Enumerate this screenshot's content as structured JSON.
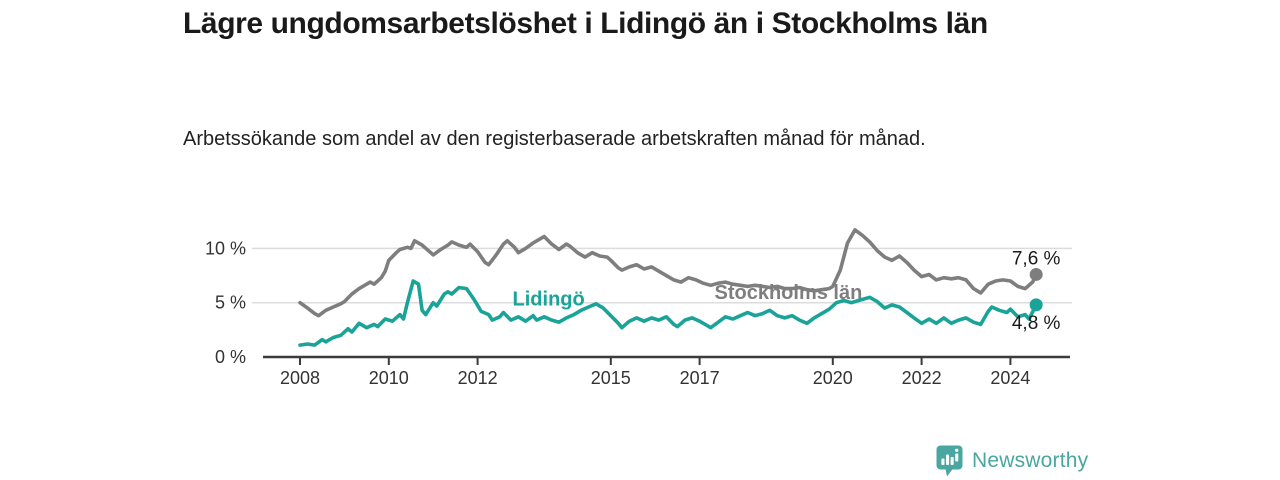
{
  "page": {
    "title": "Lägre ungdomsarbetslöshet i Lidingö än i Stockholms län",
    "subtitle": "Arbetssökande som andel av den registerbaserade arbetskraften månad för månad."
  },
  "branding": {
    "logo_text": "Newsworthy",
    "logo_icon": "bar-chart-speech-bubble-icon",
    "brand_color": "#4aa6a0"
  },
  "chart_data": {
    "type": "line",
    "title": "Lägre ungdomsarbetslöshet i Lidingö än i Stockholms län",
    "subtitle": "Arbetssökande som andel av den registerbaserade arbetskraften månad för månad.",
    "unit": "%",
    "x_axis": {
      "ticks": [
        2008,
        2010,
        2012,
        2015,
        2017,
        2020,
        2022,
        2024
      ],
      "range": [
        2007.17,
        2025.35
      ],
      "grid": false
    },
    "y_axis": {
      "ticks": [
        {
          "value": 0,
          "label": "0 %"
        },
        {
          "value": 5,
          "label": "5 %"
        },
        {
          "value": 10,
          "label": "10 %"
        }
      ],
      "range": [
        0,
        12.2
      ],
      "grid": true
    },
    "legend_position": "inline-labels",
    "series": [
      {
        "name": "Stockholms län",
        "color": "#7e7e7e",
        "end_value": 7.6,
        "end_label": "7,6 %",
        "end_label_position": "above",
        "label_anchor": [
          2019.0,
          5.35
        ],
        "points": [
          [
            2008.0,
            5.0
          ],
          [
            2008.17,
            4.5
          ],
          [
            2008.33,
            4.0
          ],
          [
            2008.42,
            3.8
          ],
          [
            2008.58,
            4.3
          ],
          [
            2008.75,
            4.6
          ],
          [
            2008.92,
            4.9
          ],
          [
            2009.0,
            5.1
          ],
          [
            2009.17,
            5.8
          ],
          [
            2009.33,
            6.3
          ],
          [
            2009.5,
            6.7
          ],
          [
            2009.58,
            6.9
          ],
          [
            2009.67,
            6.7
          ],
          [
            2009.83,
            7.3
          ],
          [
            2009.92,
            7.9
          ],
          [
            2010.0,
            8.9
          ],
          [
            2010.17,
            9.6
          ],
          [
            2010.25,
            9.9
          ],
          [
            2010.42,
            10.1
          ],
          [
            2010.5,
            10.0
          ],
          [
            2010.58,
            10.7
          ],
          [
            2010.75,
            10.3
          ],
          [
            2010.92,
            9.7
          ],
          [
            2011.0,
            9.4
          ],
          [
            2011.17,
            9.9
          ],
          [
            2011.33,
            10.3
          ],
          [
            2011.42,
            10.6
          ],
          [
            2011.58,
            10.3
          ],
          [
            2011.75,
            10.1
          ],
          [
            2011.83,
            10.4
          ],
          [
            2012.0,
            9.7
          ],
          [
            2012.17,
            8.7
          ],
          [
            2012.25,
            8.5
          ],
          [
            2012.42,
            9.4
          ],
          [
            2012.58,
            10.4
          ],
          [
            2012.67,
            10.7
          ],
          [
            2012.83,
            10.1
          ],
          [
            2012.92,
            9.6
          ],
          [
            2013.08,
            10.0
          ],
          [
            2013.25,
            10.5
          ],
          [
            2013.42,
            10.9
          ],
          [
            2013.5,
            11.1
          ],
          [
            2013.67,
            10.4
          ],
          [
            2013.83,
            9.9
          ],
          [
            2014.0,
            10.4
          ],
          [
            2014.08,
            10.2
          ],
          [
            2014.25,
            9.6
          ],
          [
            2014.42,
            9.2
          ],
          [
            2014.58,
            9.6
          ],
          [
            2014.75,
            9.3
          ],
          [
            2014.92,
            9.2
          ],
          [
            2015.0,
            8.9
          ],
          [
            2015.17,
            8.2
          ],
          [
            2015.25,
            8.0
          ],
          [
            2015.42,
            8.3
          ],
          [
            2015.58,
            8.5
          ],
          [
            2015.75,
            8.1
          ],
          [
            2015.92,
            8.3
          ],
          [
            2016.08,
            7.9
          ],
          [
            2016.25,
            7.5
          ],
          [
            2016.42,
            7.1
          ],
          [
            2016.58,
            6.9
          ],
          [
            2016.75,
            7.3
          ],
          [
            2016.92,
            7.1
          ],
          [
            2017.08,
            6.8
          ],
          [
            2017.25,
            6.6
          ],
          [
            2017.42,
            6.8
          ],
          [
            2017.58,
            6.9
          ],
          [
            2017.75,
            6.7
          ],
          [
            2017.92,
            6.6
          ],
          [
            2018.08,
            6.5
          ],
          [
            2018.25,
            6.6
          ],
          [
            2018.42,
            6.5
          ],
          [
            2018.58,
            6.4
          ],
          [
            2018.75,
            6.5
          ],
          [
            2018.92,
            6.3
          ],
          [
            2019.08,
            6.3
          ],
          [
            2019.25,
            6.4
          ],
          [
            2019.42,
            6.2
          ],
          [
            2019.58,
            6.1
          ],
          [
            2019.75,
            6.2
          ],
          [
            2019.92,
            6.3
          ],
          [
            2020.0,
            6.5
          ],
          [
            2020.17,
            8.0
          ],
          [
            2020.33,
            10.5
          ],
          [
            2020.5,
            11.7
          ],
          [
            2020.67,
            11.2
          ],
          [
            2020.83,
            10.6
          ],
          [
            2021.0,
            9.8
          ],
          [
            2021.17,
            9.2
          ],
          [
            2021.33,
            8.9
          ],
          [
            2021.5,
            9.3
          ],
          [
            2021.67,
            8.7
          ],
          [
            2021.83,
            8.0
          ],
          [
            2022.0,
            7.4
          ],
          [
            2022.17,
            7.6
          ],
          [
            2022.33,
            7.1
          ],
          [
            2022.5,
            7.3
          ],
          [
            2022.67,
            7.2
          ],
          [
            2022.83,
            7.3
          ],
          [
            2023.0,
            7.1
          ],
          [
            2023.17,
            6.3
          ],
          [
            2023.33,
            5.9
          ],
          [
            2023.5,
            6.7
          ],
          [
            2023.67,
            7.0
          ],
          [
            2023.83,
            7.1
          ],
          [
            2024.0,
            7.0
          ],
          [
            2024.17,
            6.5
          ],
          [
            2024.33,
            6.3
          ],
          [
            2024.5,
            6.9
          ],
          [
            2024.58,
            7.6
          ]
        ]
      },
      {
        "name": "Lidingö",
        "color": "#1aa398",
        "end_value": 4.8,
        "end_label": "4,8 %",
        "end_label_position": "below",
        "label_anchor": [
          2013.6,
          4.75
        ],
        "points": [
          [
            2008.0,
            1.1
          ],
          [
            2008.17,
            1.2
          ],
          [
            2008.33,
            1.1
          ],
          [
            2008.5,
            1.6
          ],
          [
            2008.58,
            1.4
          ],
          [
            2008.75,
            1.8
          ],
          [
            2008.92,
            2.0
          ],
          [
            2009.08,
            2.6
          ],
          [
            2009.17,
            2.3
          ],
          [
            2009.33,
            3.1
          ],
          [
            2009.5,
            2.7
          ],
          [
            2009.67,
            3.0
          ],
          [
            2009.75,
            2.8
          ],
          [
            2009.92,
            3.5
          ],
          [
            2010.08,
            3.3
          ],
          [
            2010.25,
            3.9
          ],
          [
            2010.33,
            3.5
          ],
          [
            2010.42,
            5.0
          ],
          [
            2010.55,
            7.0
          ],
          [
            2010.67,
            6.7
          ],
          [
            2010.75,
            4.3
          ],
          [
            2010.83,
            3.9
          ],
          [
            2011.0,
            5.0
          ],
          [
            2011.08,
            4.7
          ],
          [
            2011.25,
            5.8
          ],
          [
            2011.33,
            6.0
          ],
          [
            2011.42,
            5.8
          ],
          [
            2011.58,
            6.4
          ],
          [
            2011.75,
            6.3
          ],
          [
            2011.92,
            5.3
          ],
          [
            2012.08,
            4.2
          ],
          [
            2012.25,
            3.9
          ],
          [
            2012.33,
            3.4
          ],
          [
            2012.5,
            3.7
          ],
          [
            2012.58,
            4.1
          ],
          [
            2012.75,
            3.4
          ],
          [
            2012.92,
            3.7
          ],
          [
            2013.08,
            3.3
          ],
          [
            2013.25,
            3.8
          ],
          [
            2013.33,
            3.4
          ],
          [
            2013.5,
            3.7
          ],
          [
            2013.67,
            3.4
          ],
          [
            2013.83,
            3.2
          ],
          [
            2014.0,
            3.6
          ],
          [
            2014.17,
            3.9
          ],
          [
            2014.33,
            4.3
          ],
          [
            2014.5,
            4.6
          ],
          [
            2014.67,
            4.9
          ],
          [
            2014.83,
            4.5
          ],
          [
            2015.0,
            3.8
          ],
          [
            2015.17,
            3.1
          ],
          [
            2015.25,
            2.7
          ],
          [
            2015.42,
            3.3
          ],
          [
            2015.58,
            3.6
          ],
          [
            2015.75,
            3.3
          ],
          [
            2015.92,
            3.6
          ],
          [
            2016.08,
            3.4
          ],
          [
            2016.25,
            3.7
          ],
          [
            2016.42,
            3.0
          ],
          [
            2016.5,
            2.8
          ],
          [
            2016.67,
            3.4
          ],
          [
            2016.83,
            3.6
          ],
          [
            2017.0,
            3.3
          ],
          [
            2017.17,
            2.9
          ],
          [
            2017.25,
            2.7
          ],
          [
            2017.42,
            3.2
          ],
          [
            2017.58,
            3.7
          ],
          [
            2017.75,
            3.5
          ],
          [
            2017.92,
            3.8
          ],
          [
            2018.08,
            4.1
          ],
          [
            2018.25,
            3.8
          ],
          [
            2018.42,
            4.0
          ],
          [
            2018.58,
            4.3
          ],
          [
            2018.75,
            3.8
          ],
          [
            2018.92,
            3.6
          ],
          [
            2019.08,
            3.8
          ],
          [
            2019.25,
            3.4
          ],
          [
            2019.42,
            3.1
          ],
          [
            2019.58,
            3.6
          ],
          [
            2019.75,
            4.0
          ],
          [
            2019.92,
            4.4
          ],
          [
            2020.08,
            5.0
          ],
          [
            2020.25,
            5.2
          ],
          [
            2020.42,
            5.0
          ],
          [
            2020.58,
            5.2
          ],
          [
            2020.83,
            5.5
          ],
          [
            2021.0,
            5.1
          ],
          [
            2021.17,
            4.5
          ],
          [
            2021.33,
            4.8
          ],
          [
            2021.5,
            4.6
          ],
          [
            2021.67,
            4.1
          ],
          [
            2021.83,
            3.6
          ],
          [
            2022.0,
            3.1
          ],
          [
            2022.17,
            3.5
          ],
          [
            2022.33,
            3.1
          ],
          [
            2022.5,
            3.6
          ],
          [
            2022.67,
            3.1
          ],
          [
            2022.83,
            3.4
          ],
          [
            2023.0,
            3.6
          ],
          [
            2023.17,
            3.2
          ],
          [
            2023.33,
            3.0
          ],
          [
            2023.5,
            4.2
          ],
          [
            2023.58,
            4.6
          ],
          [
            2023.75,
            4.3
          ],
          [
            2023.92,
            4.1
          ],
          [
            2024.0,
            4.4
          ],
          [
            2024.17,
            3.7
          ],
          [
            2024.33,
            3.9
          ],
          [
            2024.42,
            3.5
          ],
          [
            2024.58,
            4.8
          ]
        ]
      }
    ]
  }
}
